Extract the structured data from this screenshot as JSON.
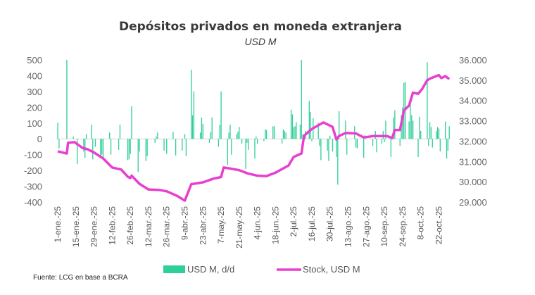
{
  "chart_data": {
    "type": "bar+line",
    "title": "Depósitos privados en moneda extranjera",
    "subtitle": "USD M",
    "source": "Fuente: LCG en base a BCRA",
    "colors": {
      "bars": "#2ecf98",
      "line": "#e83fd0",
      "zero_line": "#d9d9d9"
    },
    "left_axis": {
      "ylim": [
        -400,
        500
      ],
      "ticks": [
        500,
        400,
        300,
        200,
        100,
        0,
        -100,
        -200,
        -300,
        -400
      ],
      "tick_labels": [
        "500",
        "400",
        "300",
        "200",
        "100",
        "0",
        "-100",
        "-200",
        "-300",
        "-400"
      ]
    },
    "right_axis": {
      "ylim": [
        29000,
        36000
      ],
      "ticks": [
        36000,
        35000,
        34000,
        33000,
        32000,
        31000,
        30000,
        29000
      ],
      "tick_labels": [
        "36.000",
        "35.000",
        "34.000",
        "33.000",
        "32.000",
        "31.000",
        "30.000",
        "29.000"
      ]
    },
    "x_axis": {
      "range": [
        "2025-01-01",
        "2025-10-31"
      ],
      "ticks": [
        "2025-01-01",
        "2025-01-15",
        "2025-01-29",
        "2025-02-12",
        "2025-02-26",
        "2025-03-12",
        "2025-03-26",
        "2025-04-09",
        "2025-04-23",
        "2025-05-07",
        "2025-05-21",
        "2025-06-04",
        "2025-06-18",
        "2025-07-02",
        "2025-07-16",
        "2025-07-30",
        "2025-08-13",
        "2025-08-27",
        "2025-09-10",
        "2025-09-24",
        "2025-10-08",
        "2025-10-22"
      ],
      "tick_labels": [
        "1-ene.-25",
        "15-ene.-25",
        "29-ene.-25",
        "12-feb.-25",
        "26-feb.-25",
        "12-mar.-25",
        "26-mar.-25",
        "9-abr.-25",
        "23-abr.-25",
        "7-may.-25",
        "21-may.-25",
        "4-jun.-25",
        "18-jun.-25",
        "2-jul.-25",
        "16-jul.-25",
        "30-jul.-25",
        "13-ago.-25",
        "27-ago.-25",
        "10-sep.-25",
        "24-sep.-25",
        "8-oct.-25",
        "22-oct.-25"
      ]
    },
    "legend": {
      "placement": "bottom",
      "items": [
        "USD M, d/d",
        "Stock, USD M"
      ]
    },
    "series": [
      {
        "name": "USD M, d/d",
        "type": "bar",
        "axis": "left",
        "points": [
          [
            "2025-01-01",
            102
          ],
          [
            "2025-01-02",
            -60
          ],
          [
            "2025-01-08",
            500
          ],
          [
            "2025-01-13",
            15
          ],
          [
            "2025-01-16",
            -160
          ],
          [
            "2025-01-21",
            -80
          ],
          [
            "2025-01-22",
            -120
          ],
          [
            "2025-01-23",
            30
          ],
          [
            "2025-01-27",
            90
          ],
          [
            "2025-01-28",
            -130
          ],
          [
            "2025-01-30",
            -50
          ],
          [
            "2025-02-03",
            -110
          ],
          [
            "2025-02-04",
            -100
          ],
          [
            "2025-02-05",
            -130
          ],
          [
            "2025-02-10",
            40
          ],
          [
            "2025-02-11",
            -100
          ],
          [
            "2025-02-17",
            -70
          ],
          [
            "2025-02-18",
            90
          ],
          [
            "2025-02-24",
            -135
          ],
          [
            "2025-02-25",
            -130
          ],
          [
            "2025-02-26",
            -95
          ],
          [
            "2025-02-27",
            206
          ],
          [
            "2025-03-04",
            -210
          ],
          [
            "2025-03-05",
            -80
          ],
          [
            "2025-03-10",
            -140
          ],
          [
            "2025-03-11",
            -110
          ],
          [
            "2025-03-17",
            -25
          ],
          [
            "2025-03-18",
            15
          ],
          [
            "2025-03-19",
            40
          ],
          [
            "2025-03-24",
            -75
          ],
          [
            "2025-03-26",
            -95
          ],
          [
            "2025-03-31",
            45
          ],
          [
            "2025-04-02",
            -105
          ],
          [
            "2025-04-07",
            -75
          ],
          [
            "2025-04-09",
            30
          ],
          [
            "2025-04-10",
            -110
          ],
          [
            "2025-04-14",
            438
          ],
          [
            "2025-04-15",
            150
          ],
          [
            "2025-04-16",
            300
          ],
          [
            "2025-04-21",
            40
          ],
          [
            "2025-04-22",
            135
          ],
          [
            "2025-04-23",
            95
          ],
          [
            "2025-04-28",
            -25
          ],
          [
            "2025-04-29",
            45
          ],
          [
            "2025-04-30",
            135
          ],
          [
            "2025-05-05",
            -50
          ],
          [
            "2025-05-06",
            90
          ],
          [
            "2025-05-07",
            300
          ],
          [
            "2025-05-12",
            -165
          ],
          [
            "2025-05-13",
            40
          ],
          [
            "2025-05-14",
            90
          ],
          [
            "2025-05-15",
            -100
          ],
          [
            "2025-05-19",
            30
          ],
          [
            "2025-05-20",
            45
          ],
          [
            "2025-05-21",
            75
          ],
          [
            "2025-05-23",
            -30
          ],
          [
            "2025-05-26",
            -190
          ],
          [
            "2025-05-27",
            -25
          ],
          [
            "2025-05-28",
            -70
          ],
          [
            "2025-06-02",
            -125
          ],
          [
            "2025-06-03",
            15
          ],
          [
            "2025-06-04",
            -30
          ],
          [
            "2025-06-09",
            -15
          ],
          [
            "2025-06-10",
            60
          ],
          [
            "2025-06-11",
            55
          ],
          [
            "2025-06-16",
            80
          ],
          [
            "2025-06-17",
            80
          ],
          [
            "2025-06-23",
            -30
          ],
          [
            "2025-06-24",
            60
          ],
          [
            "2025-06-25",
            50
          ],
          [
            "2025-06-26",
            40
          ],
          [
            "2025-06-30",
            185
          ],
          [
            "2025-07-01",
            155
          ],
          [
            "2025-07-02",
            75
          ],
          [
            "2025-07-03",
            80
          ],
          [
            "2025-07-04",
            105
          ],
          [
            "2025-07-07",
            90
          ],
          [
            "2025-07-08",
            500
          ],
          [
            "2025-07-09",
            30
          ],
          [
            "2025-07-11",
            50
          ],
          [
            "2025-07-14",
            240
          ],
          [
            "2025-07-15",
            170
          ],
          [
            "2025-07-16",
            -15
          ],
          [
            "2025-07-17",
            130
          ],
          [
            "2025-07-21",
            100
          ],
          [
            "2025-07-22",
            -45
          ],
          [
            "2025-07-23",
            -135
          ],
          [
            "2025-07-28",
            -75
          ],
          [
            "2025-07-29",
            -140
          ],
          [
            "2025-07-30",
            20
          ],
          [
            "2025-08-01",
            -80
          ],
          [
            "2025-08-04",
            -115
          ],
          [
            "2025-08-05",
            -290
          ],
          [
            "2025-08-06",
            175
          ],
          [
            "2025-08-11",
            115
          ],
          [
            "2025-08-12",
            -100
          ],
          [
            "2025-08-18",
            80
          ],
          [
            "2025-08-19",
            -55
          ],
          [
            "2025-08-20",
            -60
          ],
          [
            "2025-08-25",
            -120
          ],
          [
            "2025-08-26",
            25
          ],
          [
            "2025-09-01",
            -45
          ],
          [
            "2025-09-03",
            50
          ],
          [
            "2025-09-04",
            -85
          ],
          [
            "2025-09-08",
            -30
          ],
          [
            "2025-09-09",
            50
          ],
          [
            "2025-09-10",
            -20
          ],
          [
            "2025-09-11",
            115
          ],
          [
            "2025-09-15",
            -115
          ],
          [
            "2025-09-17",
            135
          ],
          [
            "2025-09-18",
            180
          ],
          [
            "2025-09-22",
            -45
          ],
          [
            "2025-09-23",
            150
          ],
          [
            "2025-09-24",
            200
          ],
          [
            "2025-09-25",
            355
          ],
          [
            "2025-09-26",
            360
          ],
          [
            "2025-09-29",
            110
          ],
          [
            "2025-09-30",
            220
          ],
          [
            "2025-10-01",
            150
          ],
          [
            "2025-10-02",
            115
          ],
          [
            "2025-10-06",
            -115
          ],
          [
            "2025-10-07",
            140
          ],
          [
            "2025-10-08",
            50
          ],
          [
            "2025-10-13",
            485
          ],
          [
            "2025-10-14",
            -45
          ],
          [
            "2025-10-15",
            105
          ],
          [
            "2025-10-16",
            75
          ],
          [
            "2025-10-17",
            -55
          ],
          [
            "2025-10-20",
            50
          ],
          [
            "2025-10-21",
            75
          ],
          [
            "2025-10-22",
            65
          ],
          [
            "2025-10-23",
            -80
          ],
          [
            "2025-10-27",
            110
          ],
          [
            "2025-10-28",
            -125
          ],
          [
            "2025-10-29",
            -75
          ],
          [
            "2025-10-30",
            80
          ]
        ]
      },
      {
        "name": "Stock, USD M",
        "type": "line",
        "axis": "right",
        "points": [
          [
            "2025-01-01",
            31500
          ],
          [
            "2025-01-06",
            31420
          ],
          [
            "2025-01-08",
            31390
          ],
          [
            "2025-01-09",
            31920
          ],
          [
            "2025-01-14",
            31950
          ],
          [
            "2025-01-20",
            31670
          ],
          [
            "2025-01-24",
            31600
          ],
          [
            "2025-01-29",
            31440
          ],
          [
            "2025-02-05",
            31150
          ],
          [
            "2025-02-12",
            30700
          ],
          [
            "2025-02-19",
            30600
          ],
          [
            "2025-02-24",
            30250
          ],
          [
            "2025-02-26",
            30180
          ],
          [
            "2025-02-27",
            30300
          ],
          [
            "2025-03-05",
            29900
          ],
          [
            "2025-03-12",
            29620
          ],
          [
            "2025-03-20",
            29600
          ],
          [
            "2025-03-26",
            29530
          ],
          [
            "2025-04-03",
            29310
          ],
          [
            "2025-04-09",
            29070
          ],
          [
            "2025-04-14",
            29880
          ],
          [
            "2025-04-23",
            29970
          ],
          [
            "2025-05-01",
            30150
          ],
          [
            "2025-05-07",
            30230
          ],
          [
            "2025-05-09",
            30700
          ],
          [
            "2025-05-14",
            30650
          ],
          [
            "2025-05-21",
            30570
          ],
          [
            "2025-05-28",
            30400
          ],
          [
            "2025-06-04",
            30300
          ],
          [
            "2025-06-11",
            30280
          ],
          [
            "2025-06-18",
            30450
          ],
          [
            "2025-06-28",
            30800
          ],
          [
            "2025-07-02",
            31220
          ],
          [
            "2025-07-08",
            31390
          ],
          [
            "2025-07-10",
            32260
          ],
          [
            "2025-07-16",
            32600
          ],
          [
            "2025-07-25",
            32920
          ],
          [
            "2025-08-01",
            32700
          ],
          [
            "2025-08-04",
            32080
          ],
          [
            "2025-08-06",
            32250
          ],
          [
            "2025-08-11",
            32400
          ],
          [
            "2025-08-19",
            32380
          ],
          [
            "2025-08-25",
            32180
          ],
          [
            "2025-09-02",
            32250
          ],
          [
            "2025-09-12",
            32250
          ],
          [
            "2025-09-16",
            32150
          ],
          [
            "2025-09-18",
            32550
          ],
          [
            "2025-09-22",
            32550
          ],
          [
            "2025-09-25",
            33500
          ],
          [
            "2025-09-29",
            33750
          ],
          [
            "2025-10-02",
            34380
          ],
          [
            "2025-10-06",
            34330
          ],
          [
            "2025-10-09",
            34560
          ],
          [
            "2025-10-13",
            35000
          ],
          [
            "2025-10-16",
            35100
          ],
          [
            "2025-10-22",
            35250
          ],
          [
            "2025-10-24",
            35100
          ],
          [
            "2025-10-27",
            35200
          ],
          [
            "2025-10-30",
            35050
          ]
        ]
      }
    ]
  }
}
